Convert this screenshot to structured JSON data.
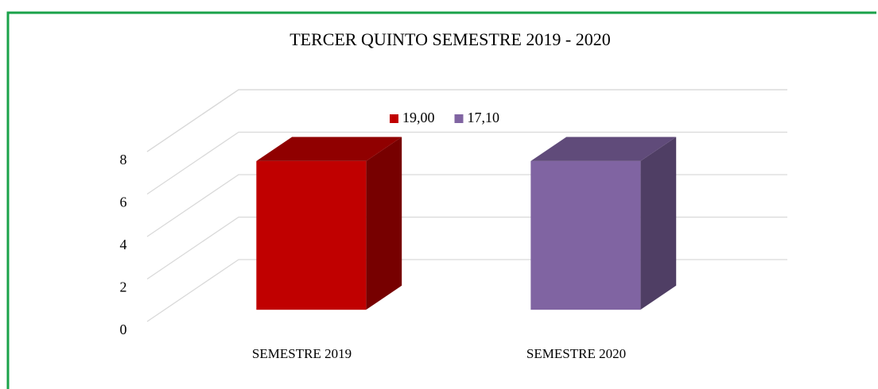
{
  "chart_data": {
    "type": "bar3d",
    "title": "TERCER QUINTO SEMESTRE 2019 - 2020",
    "categories": [
      "SEMESTRE 2019",
      "SEMESTRE 2020"
    ],
    "series": [
      {
        "name": "19,00",
        "color": "#c00000",
        "values": [
          7,
          null
        ]
      },
      {
        "name": "17,10",
        "color": "#8064a2",
        "values": [
          null,
          7
        ]
      }
    ],
    "ylim": [
      0,
      8
    ],
    "yticks": [
      0,
      2,
      4,
      6,
      8
    ],
    "grid": true,
    "legend": "top"
  }
}
